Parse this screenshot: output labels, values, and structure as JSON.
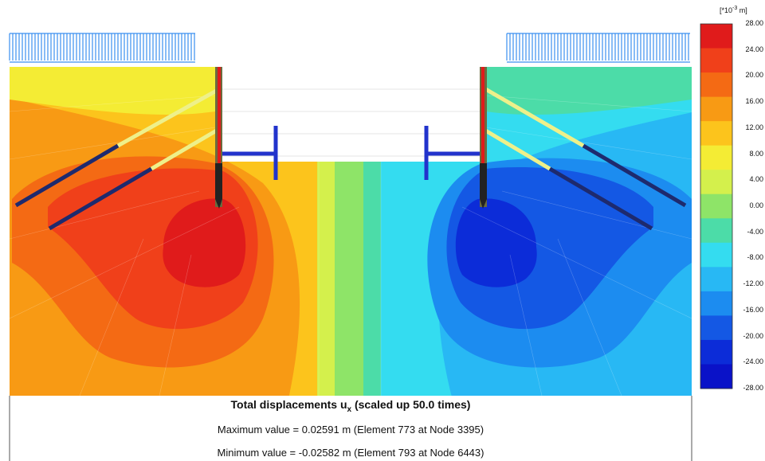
{
  "caption": {
    "title_prefix": "Total displacements u",
    "title_sub": "x",
    "title_suffix": " (scaled up 50.0 times)",
    "max_line": "Maximum value = 0.02591 m (Element 773 at Node 3395)",
    "min_line": "Minimum value = -0.02582 m (Element 793 at Node 6443)"
  },
  "legend": {
    "unit_prefix": "[*10",
    "unit_exp": "-3",
    "unit_suffix": " m]",
    "ticks": [
      "28.00",
      "24.00",
      "20.00",
      "16.00",
      "12.00",
      "8.00",
      "4.00",
      "0.00",
      "-4.00",
      "-8.00",
      "-12.00",
      "-16.00",
      "-20.00",
      "-24.00",
      "-28.00"
    ],
    "colors": [
      "#e01b1b",
      "#f0401a",
      "#f46a14",
      "#f89a14",
      "#fcc41c",
      "#f4ec34",
      "#d4f04c",
      "#8ee468",
      "#4cdca8",
      "#34dcf0",
      "#28b8f4",
      "#1c8cf0",
      "#1458e4",
      "#0c2cd8",
      "#0a12c8"
    ]
  },
  "colors": {
    "wall": "#222222",
    "wall_red": "#e01b1b",
    "strut": "#2233cc",
    "anchor_free": "#eef08a",
    "anchor_grout": "#1e2a6e",
    "load": "#3a8ff0"
  }
}
